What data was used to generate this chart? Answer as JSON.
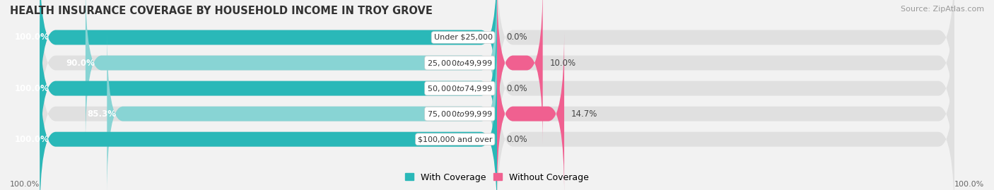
{
  "title": "HEALTH INSURANCE COVERAGE BY HOUSEHOLD INCOME IN TROY GROVE",
  "source": "Source: ZipAtlas.com",
  "categories": [
    "Under $25,000",
    "$25,000 to $49,999",
    "$50,000 to $74,999",
    "$75,000 to $99,999",
    "$100,000 and over"
  ],
  "with_coverage": [
    100.0,
    90.0,
    100.0,
    85.3,
    100.0
  ],
  "without_coverage": [
    0.0,
    10.0,
    0.0,
    14.7,
    0.0
  ],
  "color_with_full": "#2ab8b8",
  "color_with_partial": "#88d4d4",
  "color_without_full": "#f06090",
  "color_without_partial": "#f4a8bf",
  "background_color": "#f2f2f2",
  "bar_bg_color": "#e0e0e0",
  "title_fontsize": 10.5,
  "source_fontsize": 8,
  "label_fontsize": 8.5,
  "legend_label_with": "With Coverage",
  "legend_label_without": "Without Coverage",
  "axis_label_left": "100.0%",
  "axis_label_right": "100.0%"
}
